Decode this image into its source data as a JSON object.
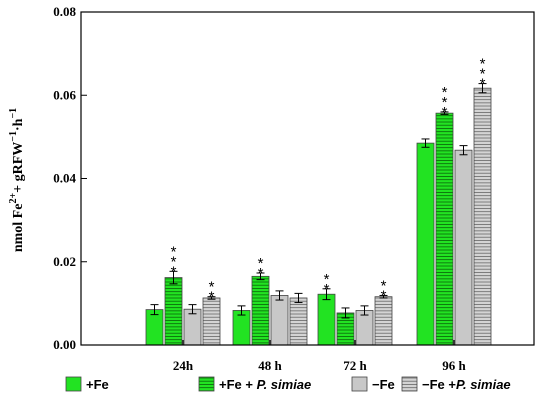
{
  "chart_data": {
    "type": "bar",
    "ylabel_parts": [
      "nmol Fe",
      "2+",
      "+ gRFW",
      "−1",
      "·h",
      "−1"
    ],
    "categories": [
      "24h",
      "48 h",
      "72 h",
      "96 h"
    ],
    "ylim": [
      0,
      0.08
    ],
    "yticks": [
      "0.00",
      "0.02",
      "0.04",
      "0.06",
      "0.08"
    ],
    "series": [
      {
        "name": "+Fe",
        "legend_suffix": "",
        "pattern": "solid",
        "color": "#22e322",
        "values": [
          0.0085,
          0.0083,
          0.0122,
          0.0485
        ],
        "errors": [
          0.0012,
          0.0011,
          0.0013,
          0.001
        ],
        "stars": [
          "",
          "",
          "**",
          ""
        ]
      },
      {
        "name": "+Fe + ",
        "legend_suffix": "P. simiae",
        "pattern": "hatch",
        "color": "#22e322",
        "values": [
          0.0162,
          0.0165,
          0.0077,
          0.0557
        ],
        "errors": [
          0.0015,
          0.0008,
          0.0012,
          0.0003
        ],
        "stars": [
          "***",
          "**",
          "",
          "***"
        ]
      },
      {
        "name": "−Fe",
        "legend_suffix": "",
        "pattern": "solid",
        "color": "#c8c8c8",
        "values": [
          0.0086,
          0.0119,
          0.0083,
          0.0468
        ],
        "errors": [
          0.0011,
          0.0011,
          0.0011,
          0.0011
        ],
        "stars": [
          "",
          "",
          "",
          ""
        ]
      },
      {
        "name": "−Fe +",
        "legend_suffix": "P. simiae",
        "pattern": "hatch",
        "color": "#c8c8c8",
        "values": [
          0.0113,
          0.0113,
          0.0116,
          0.0617
        ],
        "errors": [
          0.0003,
          0.0011,
          0.0003,
          0.0011
        ],
        "stars": [
          "**",
          "",
          "**",
          "***"
        ]
      }
    ],
    "legend_position": "bottom",
    "grid": false
  }
}
